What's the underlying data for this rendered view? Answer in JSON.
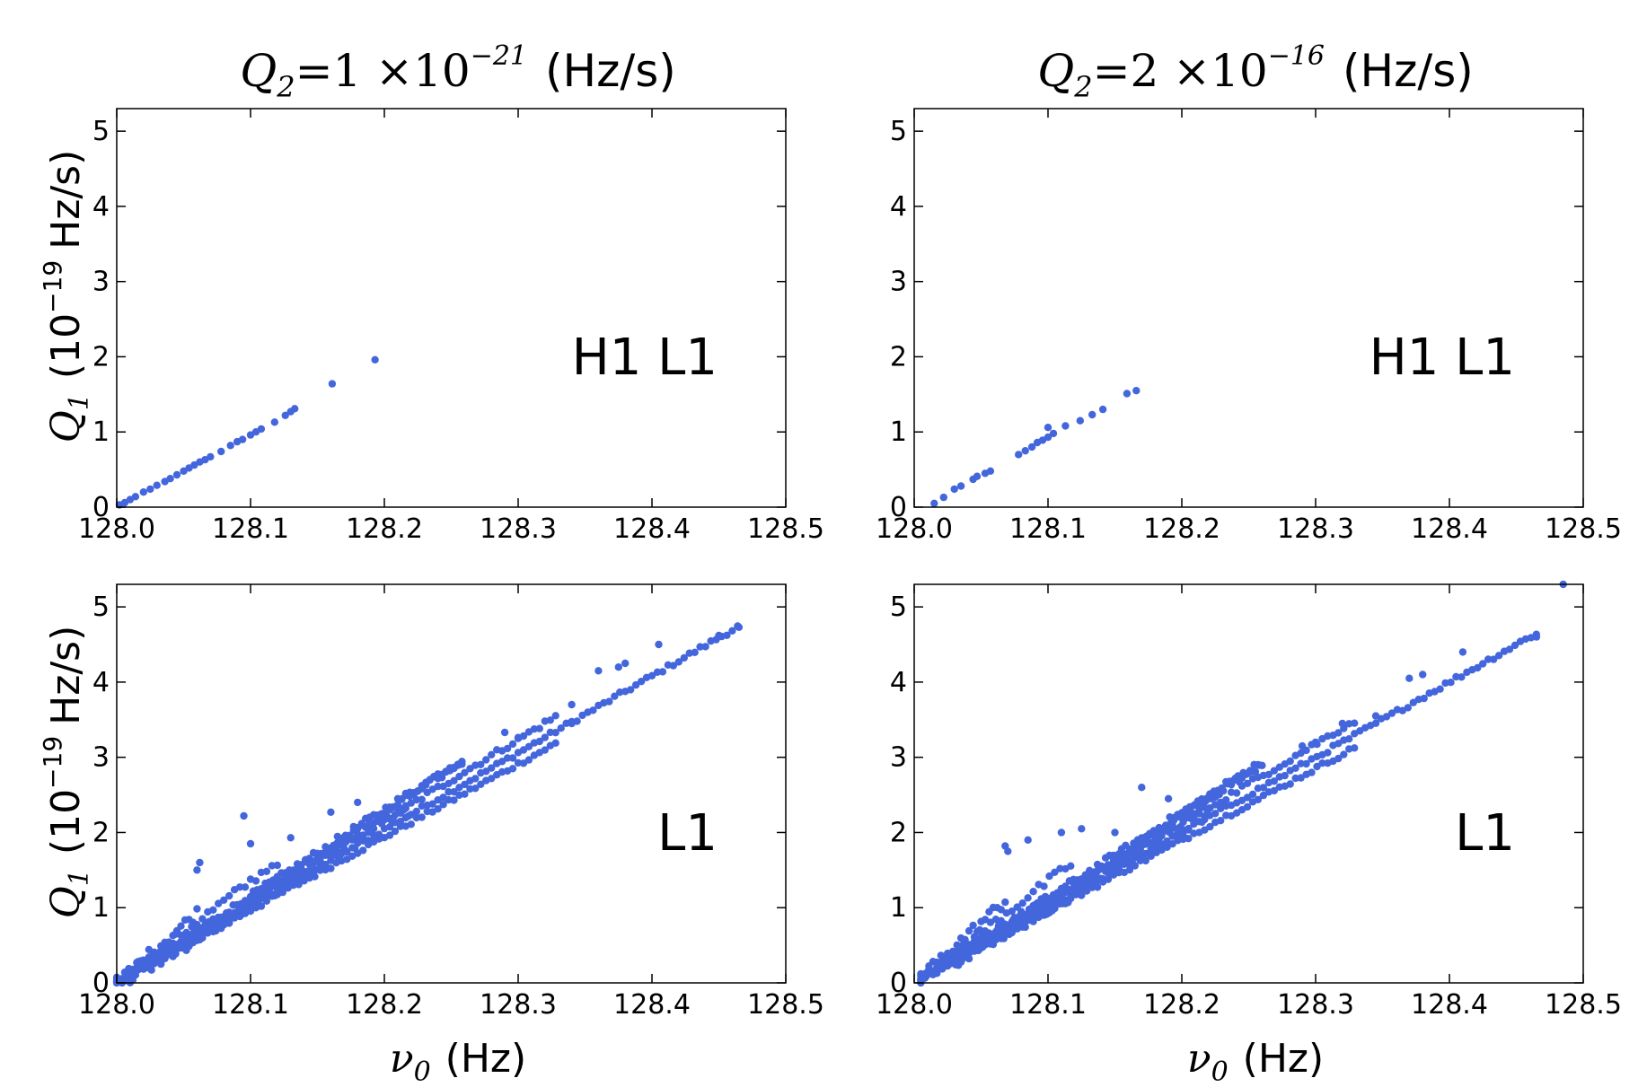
{
  "figure": {
    "columns": [
      {
        "title_symbol": "Q",
        "title_sub": "2",
        "title_eq": "=1 ×10",
        "title_exp": "−21",
        "title_units": "(Hz/s)"
      },
      {
        "title_symbol": "Q",
        "title_sub": "2",
        "title_eq": "=2 ×10",
        "title_exp": "−16",
        "title_units": "(Hz/s)"
      }
    ],
    "ylabel": {
      "symbol": "Q",
      "sub": "1",
      "paren": "(10",
      "exp": "−19",
      "units": "Hz/s)"
    },
    "xlabel": {
      "symbol": "ν",
      "sub": "0",
      "units": "(Hz)"
    }
  },
  "chart_data": [
    {
      "type": "scatter",
      "panel": "top-left",
      "annotation": "H1 L1",
      "xlim": [
        128.0,
        128.5
      ],
      "ylim": [
        0,
        5.3
      ],
      "xticks": [
        "128.0",
        "128.1",
        "128.2",
        "128.3",
        "128.4",
        "128.5"
      ],
      "yticks": [
        "0",
        "1",
        "2",
        "3",
        "4",
        "5"
      ],
      "points": [
        [
          128.002,
          0.03
        ],
        [
          128.006,
          0.06
        ],
        [
          128.01,
          0.1
        ],
        [
          128.014,
          0.14
        ],
        [
          128.02,
          0.2
        ],
        [
          128.025,
          0.24
        ],
        [
          128.03,
          0.29
        ],
        [
          128.036,
          0.34
        ],
        [
          128.04,
          0.38
        ],
        [
          128.045,
          0.43
        ],
        [
          128.05,
          0.48
        ],
        [
          128.054,
          0.52
        ],
        [
          128.058,
          0.56
        ],
        [
          128.062,
          0.6
        ],
        [
          128.066,
          0.63
        ],
        [
          128.07,
          0.67
        ],
        [
          128.078,
          0.74
        ],
        [
          128.085,
          0.82
        ],
        [
          128.09,
          0.87
        ],
        [
          128.094,
          0.9
        ],
        [
          128.1,
          0.96
        ],
        [
          128.104,
          1.0
        ],
        [
          128.108,
          1.04
        ],
        [
          128.118,
          1.13
        ],
        [
          128.126,
          1.22
        ],
        [
          128.13,
          1.27
        ],
        [
          128.133,
          1.31
        ],
        [
          128.161,
          1.64
        ],
        [
          128.193,
          1.96
        ]
      ]
    },
    {
      "type": "scatter",
      "panel": "top-right",
      "annotation": "H1 L1",
      "xlim": [
        128.0,
        128.5
      ],
      "ylim": [
        0,
        5.3
      ],
      "xticks": [
        "128.0",
        "128.1",
        "128.2",
        "128.3",
        "128.4",
        "128.5"
      ],
      "yticks": [
        "0",
        "1",
        "2",
        "3",
        "4",
        "5"
      ],
      "points": [
        [
          128.015,
          0.05
        ],
        [
          128.022,
          0.13
        ],
        [
          128.03,
          0.24
        ],
        [
          128.035,
          0.28
        ],
        [
          128.044,
          0.37
        ],
        [
          128.047,
          0.41
        ],
        [
          128.053,
          0.45
        ],
        [
          128.057,
          0.48
        ],
        [
          128.078,
          0.7
        ],
        [
          128.083,
          0.75
        ],
        [
          128.088,
          0.8
        ],
        [
          128.092,
          0.86
        ],
        [
          128.096,
          0.89
        ],
        [
          128.1,
          0.93
        ],
        [
          128.104,
          0.98
        ],
        [
          128.1,
          1.06
        ],
        [
          128.113,
          1.08
        ],
        [
          128.124,
          1.15
        ],
        [
          128.133,
          1.23
        ],
        [
          128.141,
          1.3
        ],
        [
          128.159,
          1.51
        ],
        [
          128.166,
          1.55
        ]
      ]
    },
    {
      "type": "scatter",
      "panel": "bottom-left",
      "annotation": "L1",
      "xlim": [
        128.0,
        128.5
      ],
      "ylim": [
        0,
        5.3
      ],
      "xticks": [
        "128.0",
        "128.1",
        "128.2",
        "128.3",
        "128.4",
        "128.5"
      ],
      "yticks": [
        "0",
        "1",
        "2",
        "3",
        "4",
        "5"
      ],
      "bands": [
        {
          "x0": 128.0,
          "x1": 128.465,
          "slope": 10.2,
          "step": 0.004,
          "jitter": 0.03
        },
        {
          "x0": 128.0,
          "x1": 128.33,
          "slope": 9.7,
          "step": 0.004,
          "jitter": 0.03
        },
        {
          "x0": 128.0,
          "x1": 128.33,
          "slope": 10.8,
          "step": 0.004,
          "jitter": 0.04
        },
        {
          "x0": 128.0,
          "x1": 128.26,
          "slope": 11.5,
          "step": 0.003,
          "jitter": 0.05
        },
        {
          "x0": 128.03,
          "x1": 128.26,
          "slope": 11.8,
          "step": 0.003,
          "jitter": 0.05,
          "offset": -0.1
        },
        {
          "x0": 128.0,
          "x1": 128.12,
          "slope": 13.5,
          "step": 0.004,
          "jitter": 0.06
        },
        {
          "x0": 128.0,
          "x1": 128.06,
          "slope": 15.5,
          "step": 0.003,
          "jitter": 0.08
        },
        {
          "x0": 128.0,
          "x1": 128.22,
          "slope": 10.5,
          "step": 0.002,
          "jitter": 0.12
        }
      ],
      "points": [
        [
          128.095,
          2.22
        ],
        [
          128.062,
          1.6
        ],
        [
          128.06,
          1.5
        ],
        [
          128.1,
          1.85
        ],
        [
          128.13,
          1.93
        ],
        [
          128.16,
          2.27
        ],
        [
          128.18,
          2.4
        ],
        [
          128.29,
          3.33
        ],
        [
          128.3,
          3.25
        ],
        [
          128.34,
          3.7
        ],
        [
          128.36,
          4.15
        ],
        [
          128.375,
          4.2
        ],
        [
          128.38,
          4.25
        ],
        [
          128.405,
          4.5
        ],
        [
          128.45,
          4.62
        ],
        [
          128.465,
          4.73
        ],
        [
          128.34,
          3.45
        ]
      ]
    },
    {
      "type": "scatter",
      "panel": "bottom-right",
      "annotation": "L1",
      "xlim": [
        128.0,
        128.5
      ],
      "ylim": [
        0,
        5.3
      ],
      "xticks": [
        "128.0",
        "128.1",
        "128.2",
        "128.3",
        "128.4",
        "128.5"
      ],
      "yticks": [
        "0",
        "1",
        "2",
        "3",
        "4",
        "5"
      ],
      "bands": [
        {
          "x0": 128.005,
          "x1": 128.465,
          "slope": 10.0,
          "step": 0.004,
          "jitter": 0.03
        },
        {
          "x0": 128.005,
          "x1": 128.33,
          "slope": 9.5,
          "step": 0.004,
          "jitter": 0.03
        },
        {
          "x0": 128.005,
          "x1": 128.33,
          "slope": 10.6,
          "step": 0.004,
          "jitter": 0.04
        },
        {
          "x0": 128.005,
          "x1": 128.26,
          "slope": 11.3,
          "step": 0.003,
          "jitter": 0.05
        },
        {
          "x0": 128.03,
          "x1": 128.26,
          "slope": 11.6,
          "step": 0.003,
          "jitter": 0.05,
          "offset": -0.1
        },
        {
          "x0": 128.005,
          "x1": 128.12,
          "slope": 13.5,
          "step": 0.004,
          "jitter": 0.06
        },
        {
          "x0": 128.005,
          "x1": 128.07,
          "slope": 16.0,
          "step": 0.003,
          "jitter": 0.08
        },
        {
          "x0": 128.005,
          "x1": 128.22,
          "slope": 10.3,
          "step": 0.002,
          "jitter": 0.12
        }
      ],
      "points": [
        [
          128.07,
          1.75
        ],
        [
          128.068,
          1.82
        ],
        [
          128.085,
          1.9
        ],
        [
          128.11,
          2.0
        ],
        [
          128.125,
          2.05
        ],
        [
          128.15,
          2.0
        ],
        [
          128.17,
          2.6
        ],
        [
          128.19,
          2.45
        ],
        [
          128.29,
          3.15
        ],
        [
          128.3,
          3.2
        ],
        [
          128.32,
          3.45
        ],
        [
          128.345,
          3.55
        ],
        [
          128.37,
          4.05
        ],
        [
          128.38,
          4.1
        ],
        [
          128.41,
          4.4
        ],
        [
          128.465,
          4.6
        ],
        [
          128.485,
          5.3
        ]
      ]
    }
  ]
}
